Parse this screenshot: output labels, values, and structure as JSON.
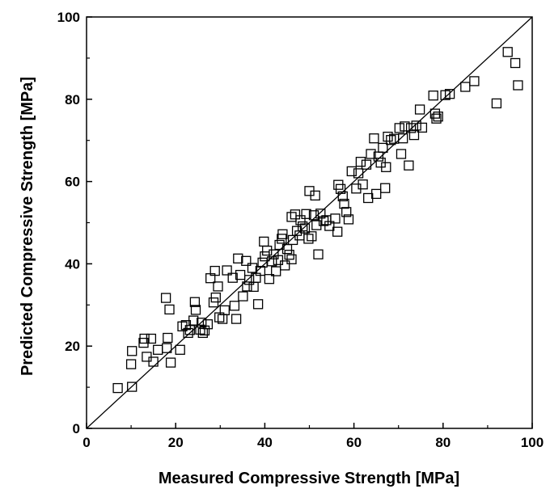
{
  "chart_data": {
    "type": "scatter",
    "title": "",
    "xlabel": "Measured Compressive Strength [MPa]",
    "ylabel": "Predicted Compressive Strength [MPa]",
    "xlim": [
      0,
      100
    ],
    "ylim": [
      0,
      100
    ],
    "xticks": [
      0,
      20,
      40,
      60,
      80,
      100
    ],
    "yticks": [
      0,
      20,
      40,
      60,
      80,
      100
    ],
    "grid": false,
    "marker": "open-square",
    "marker_color": "#000000",
    "reference_line": {
      "label": "",
      "from": [
        0,
        0
      ],
      "to": [
        100,
        100
      ]
    },
    "points": [
      [
        7.0,
        9.8
      ],
      [
        10.2,
        10.1
      ],
      [
        10.0,
        15.6
      ],
      [
        10.2,
        18.8
      ],
      [
        12.8,
        20.8
      ],
      [
        13.0,
        21.8
      ],
      [
        13.5,
        17.4
      ],
      [
        14.5,
        21.8
      ],
      [
        15.0,
        16.2
      ],
      [
        16.0,
        19.1
      ],
      [
        17.8,
        31.7
      ],
      [
        18.2,
        22.0
      ],
      [
        18.0,
        19.5
      ],
      [
        18.6,
        28.9
      ],
      [
        18.9,
        16.0
      ],
      [
        21.0,
        19.1
      ],
      [
        21.5,
        24.8
      ],
      [
        22.3,
        25.1
      ],
      [
        22.8,
        23.2
      ],
      [
        23.2,
        23.9
      ],
      [
        24.3,
        30.7
      ],
      [
        24.5,
        28.8
      ],
      [
        24.0,
        26.2
      ],
      [
        25.5,
        24.0
      ],
      [
        25.8,
        25.7
      ],
      [
        26.1,
        23.2
      ],
      [
        26.5,
        23.8
      ],
      [
        27.2,
        25.3
      ],
      [
        27.8,
        36.5
      ],
      [
        28.5,
        30.6
      ],
      [
        28.8,
        38.3
      ],
      [
        29.0,
        31.8
      ],
      [
        29.5,
        34.5
      ],
      [
        29.8,
        27.0
      ],
      [
        30.5,
        26.6
      ],
      [
        31.0,
        28.7
      ],
      [
        31.5,
        38.4
      ],
      [
        32.8,
        36.6
      ],
      [
        33.2,
        29.8
      ],
      [
        33.6,
        26.6
      ],
      [
        34.0,
        41.3
      ],
      [
        34.5,
        37.3
      ],
      [
        35.1,
        32.1
      ],
      [
        35.8,
        40.7
      ],
      [
        36.0,
        34.5
      ],
      [
        36.5,
        36.1
      ],
      [
        37.2,
        39.0
      ],
      [
        37.5,
        34.4
      ],
      [
        38.0,
        36.6
      ],
      [
        38.5,
        30.2
      ],
      [
        39.0,
        38.3
      ],
      [
        39.5,
        40.3
      ],
      [
        39.8,
        45.4
      ],
      [
        40.0,
        41.8
      ],
      [
        40.5,
        43.2
      ],
      [
        41.0,
        36.3
      ],
      [
        41.6,
        40.6
      ],
      [
        42.0,
        42.3
      ],
      [
        42.5,
        38.2
      ],
      [
        43.0,
        40.9
      ],
      [
        43.3,
        44.6
      ],
      [
        43.8,
        46.1
      ],
      [
        44.0,
        47.2
      ],
      [
        44.5,
        39.6
      ],
      [
        45.0,
        43.6
      ],
      [
        45.5,
        42.2
      ],
      [
        46.0,
        41.1
      ],
      [
        46.3,
        45.8
      ],
      [
        46.0,
        51.4
      ],
      [
        46.8,
        52.0
      ],
      [
        47.2,
        48.0
      ],
      [
        47.8,
        46.9
      ],
      [
        48.0,
        50.6
      ],
      [
        48.5,
        49.1
      ],
      [
        49.0,
        48.6
      ],
      [
        49.3,
        52.1
      ],
      [
        49.8,
        46.1
      ],
      [
        50.0,
        57.7
      ],
      [
        50.5,
        46.7
      ],
      [
        51.0,
        51.8
      ],
      [
        51.3,
        56.6
      ],
      [
        51.6,
        49.4
      ],
      [
        52.0,
        42.3
      ],
      [
        52.5,
        52.2
      ],
      [
        53.2,
        50.4
      ],
      [
        53.8,
        50.6
      ],
      [
        54.5,
        49.2
      ],
      [
        55.8,
        51.0
      ],
      [
        56.3,
        47.8
      ],
      [
        56.5,
        59.2
      ],
      [
        57.0,
        58.2
      ],
      [
        57.5,
        56.4
      ],
      [
        57.8,
        54.6
      ],
      [
        58.3,
        52.6
      ],
      [
        58.8,
        50.8
      ],
      [
        59.5,
        62.5
      ],
      [
        60.5,
        58.3
      ],
      [
        61.0,
        62.0
      ],
      [
        61.5,
        64.8
      ],
      [
        62.0,
        59.3
      ],
      [
        62.8,
        64.1
      ],
      [
        63.2,
        56.0
      ],
      [
        63.8,
        66.7
      ],
      [
        64.5,
        70.5
      ],
      [
        65.0,
        57.0
      ],
      [
        65.5,
        66.1
      ],
      [
        66.0,
        64.6
      ],
      [
        66.5,
        68.2
      ],
      [
        67.0,
        58.4
      ],
      [
        67.2,
        63.5
      ],
      [
        67.6,
        70.9
      ],
      [
        68.3,
        70.1
      ],
      [
        69.0,
        70.4
      ],
      [
        70.2,
        73.0
      ],
      [
        70.6,
        66.7
      ],
      [
        71.0,
        70.5
      ],
      [
        71.4,
        73.4
      ],
      [
        72.3,
        63.9
      ],
      [
        72.8,
        73.0
      ],
      [
        73.5,
        71.3
      ],
      [
        74.0,
        73.6
      ],
      [
        74.8,
        77.5
      ],
      [
        75.3,
        73.1
      ],
      [
        77.8,
        80.9
      ],
      [
        78.2,
        76.5
      ],
      [
        78.5,
        75.3
      ],
      [
        78.9,
        75.8
      ],
      [
        80.5,
        81.0
      ],
      [
        81.5,
        81.3
      ],
      [
        85.0,
        83.0
      ],
      [
        87.0,
        84.4
      ],
      [
        92.0,
        79.0
      ],
      [
        94.5,
        91.5
      ],
      [
        96.2,
        88.8
      ],
      [
        96.8,
        83.4
      ]
    ]
  }
}
